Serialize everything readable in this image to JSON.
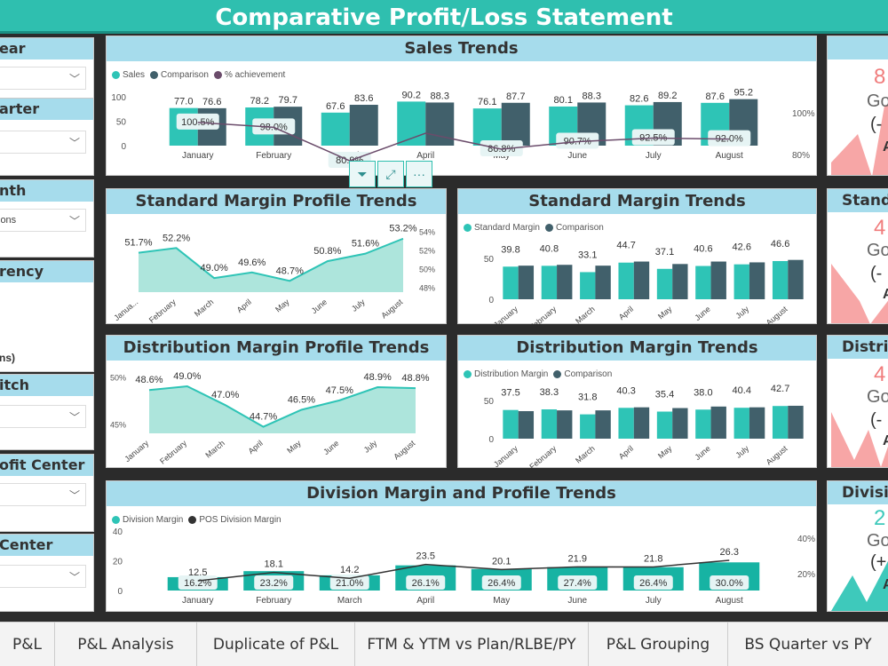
{
  "header": {
    "title": "Comparative Profit/Loss Statement"
  },
  "slicers": [
    {
      "title": "ear",
      "value": ""
    },
    {
      "title": "arter",
      "value": ""
    },
    {
      "title": "nth",
      "value": "ions"
    },
    {
      "title": "rency",
      "value": "",
      "extra": "ns)"
    },
    {
      "title": "itch",
      "value": ""
    },
    {
      "title": "ofit Center",
      "value": ""
    },
    {
      "title": "Center",
      "value": ""
    }
  ],
  "colors": {
    "teal": "#2ec4b6",
    "slate": "#41606b",
    "purple": "#6b4c6b",
    "header": "#2fbfaf",
    "titlebar": "#a6dcec",
    "kpi_red": "#f7a6a6",
    "kpi_teal": "#3ec9bb"
  },
  "sales": {
    "title": "Sales Trends",
    "legend": [
      "Sales",
      "Comparison",
      "% achievement"
    ],
    "yticks": [
      "100",
      "50",
      "0"
    ],
    "y2ticks": [
      "100%",
      "80%"
    ],
    "months": [
      "January",
      "February",
      "March",
      "April",
      "May",
      "June",
      "July",
      "August"
    ],
    "sales_labels": [
      "77.0",
      "78.2",
      "67.6",
      "90.2",
      "76.1",
      "80.1",
      "82.6",
      "87.6"
    ],
    "comp_labels": [
      "76.6",
      "79.7",
      "83.6",
      "88.3",
      "87.7",
      "88.3",
      "89.2",
      "95.2"
    ],
    "ach_labels": [
      "100.5%",
      "98.0%",
      "80.9%",
      "",
      "86.8%",
      "90.7%",
      "92.5%",
      "92.0%"
    ]
  },
  "chart_data": [
    {
      "type": "bar",
      "title": "Sales Trends",
      "categories": [
        "January",
        "February",
        "March",
        "April",
        "May",
        "June",
        "July",
        "August"
      ],
      "series": [
        {
          "name": "Sales",
          "values": [
            77.0,
            78.2,
            67.6,
            90.2,
            76.1,
            80.1,
            82.6,
            87.6
          ]
        },
        {
          "name": "Comparison",
          "values": [
            76.6,
            79.7,
            83.6,
            88.3,
            87.7,
            88.3,
            89.2,
            95.2
          ]
        },
        {
          "name": "% achievement",
          "values": [
            100.5,
            98.0,
            80.9,
            null,
            86.8,
            90.7,
            92.5,
            92.0
          ]
        }
      ],
      "ylim": [
        0,
        100
      ]
    },
    {
      "type": "area",
      "title": "Standard Margin Profile Trends",
      "categories": [
        "January",
        "February",
        "March",
        "April",
        "May",
        "June",
        "July",
        "August"
      ],
      "values": [
        51.7,
        52.2,
        49.0,
        49.6,
        48.7,
        50.8,
        51.6,
        53.2
      ]
    },
    {
      "type": "bar",
      "title": "Standard Margin Trends",
      "categories": [
        "January",
        "February",
        "March",
        "April",
        "May",
        "June",
        "July",
        "August"
      ],
      "series": [
        {
          "name": "Standard Margin",
          "values": [
            39.8,
            40.8,
            33.1,
            44.7,
            37.1,
            40.6,
            42.6,
            46.6
          ]
        },
        {
          "name": "Comparison",
          "values": [
            41.0,
            42.0,
            41.0,
            46.0,
            43.0,
            46.0,
            45.0,
            48.0
          ]
        }
      ],
      "ylim": [
        0,
        60
      ]
    },
    {
      "type": "area",
      "title": "Distribution Margin Profile Trends",
      "categories": [
        "January",
        "February",
        "March",
        "April",
        "May",
        "June",
        "July",
        "August"
      ],
      "values": [
        48.6,
        49.0,
        47.0,
        44.7,
        46.5,
        47.5,
        48.9,
        48.8
      ]
    },
    {
      "type": "bar",
      "title": "Distribution Margin Trends",
      "categories": [
        "January",
        "February",
        "March",
        "April",
        "May",
        "June",
        "July",
        "August"
      ],
      "series": [
        {
          "name": "Distribution Margin",
          "values": [
            37.5,
            38.3,
            31.8,
            40.3,
            35.4,
            38.0,
            40.4,
            42.7
          ]
        },
        {
          "name": "Comparison",
          "values": [
            36.0,
            37.0,
            37.0,
            41.0,
            40.0,
            42.0,
            41.0,
            43.0
          ]
        }
      ],
      "ylim": [
        0,
        60
      ]
    },
    {
      "type": "bar",
      "title": "Division Margin and Profile Trends",
      "categories": [
        "January",
        "February",
        "March",
        "April",
        "May",
        "June",
        "July",
        "August"
      ],
      "series": [
        {
          "name": "Division Margin",
          "values": [
            12.5,
            18.1,
            14.2,
            23.5,
            20.1,
            21.9,
            21.8,
            26.3
          ]
        },
        {
          "name": "POS Division Margin",
          "values": [
            16.2,
            23.2,
            21.0,
            26.1,
            26.4,
            27.4,
            26.4,
            30.0
          ]
        }
      ],
      "ylim": [
        0,
        40
      ]
    }
  ],
  "smp": {
    "title": "Standard Margin Profile Trends",
    "labels": [
      "51.7%",
      "52.2%",
      "49.0%",
      "49.6%",
      "48.7%",
      "50.8%",
      "51.6%",
      "53.2%"
    ],
    "months": [
      "Janua...",
      "February",
      "March",
      "April",
      "May",
      "June",
      "July",
      "August"
    ],
    "yticks": [
      "54%",
      "52%",
      "50%",
      "48%"
    ]
  },
  "sm": {
    "title": "Standard Margin Trends",
    "legend": [
      "Standard Margin",
      "Comparison"
    ],
    "labels": [
      "39.8",
      "40.8",
      "33.1",
      "44.7",
      "37.1",
      "40.6",
      "42.6",
      "46.6"
    ],
    "yticks": [
      "50",
      "0"
    ],
    "months": [
      "January",
      "February",
      "March",
      "April",
      "May",
      "June",
      "July",
      "August"
    ]
  },
  "dmp": {
    "title": "Distribution Margin Profile Trends",
    "labels": [
      "48.6%",
      "49.0%",
      "47.0%",
      "44.7%",
      "46.5%",
      "47.5%",
      "48.9%",
      "48.8%"
    ],
    "yticks": [
      "50%",
      "45%"
    ],
    "months": [
      "January",
      "February",
      "March",
      "April",
      "May",
      "June",
      "July",
      "August"
    ]
  },
  "dm": {
    "title": "Distribution Margin Trends",
    "legend": [
      "Distribution Margin",
      "Comparison"
    ],
    "labels": [
      "37.5",
      "38.3",
      "31.8",
      "40.3",
      "35.4",
      "38.0",
      "40.4",
      "42.7"
    ],
    "yticks": [
      "50",
      "0"
    ],
    "months": [
      "January",
      "February",
      "March",
      "April",
      "May",
      "June",
      "July",
      "August"
    ]
  },
  "div": {
    "title": "Division Margin and Profile Trends",
    "legend": [
      "Division Margin",
      "POS Division Margin"
    ],
    "labels": [
      "12.5",
      "18.1",
      "14.2",
      "23.5",
      "20.1",
      "21.9",
      "21.8",
      "26.3"
    ],
    "pct_labels": [
      "16.2%",
      "23.2%",
      "21.0%",
      "26.1%",
      "26.4%",
      "27.4%",
      "26.4%",
      "30.0%"
    ],
    "yticks": [
      "40",
      "20",
      "0"
    ],
    "y2ticks": [
      "40%",
      "20%"
    ],
    "months": [
      "January",
      "February",
      "March",
      "April",
      "May",
      "June",
      "July",
      "August"
    ]
  },
  "kpis": [
    {
      "title": "",
      "value": "8",
      "goal": "Go",
      "paren": "(-",
      "a": "A",
      "color": "red"
    },
    {
      "title": "Stand",
      "value": "4",
      "goal": "Goa",
      "paren": "(-",
      "a": "A",
      "color": "red"
    },
    {
      "title": "Distribu",
      "value": "4",
      "goal": "Goa",
      "paren": "(-",
      "a": "A",
      "color": "red"
    },
    {
      "title": "Divisi",
      "value": "2",
      "goal": "Goa",
      "paren": "(+",
      "a": "A",
      "color": "teal"
    }
  ],
  "toolbar": {
    "filter": "filter-icon",
    "focus": "focus-mode-icon",
    "more": "more-options-icon",
    "more_glyph": "···"
  },
  "tabs": [
    "P&L",
    "P&L Analysis",
    "Duplicate of P&L",
    "FTM & YTM vs Plan/RLBE/PY",
    "P&L Grouping",
    "BS Quarter vs PY"
  ]
}
